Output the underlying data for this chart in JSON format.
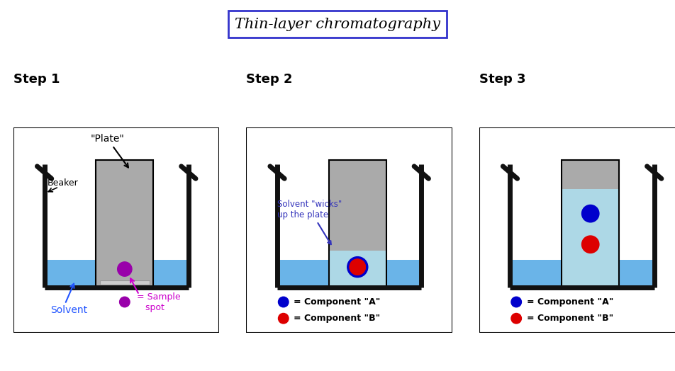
{
  "title": "Thin-layer chromatography",
  "title_box_color": "#3333cc",
  "title_fontsize": 15,
  "step_labels": [
    "Step 1",
    "Step 2",
    "Step 3"
  ],
  "step_label_fontsize": 13,
  "bg_color": "#ffffff",
  "beaker_color": "#111111",
  "solvent_color": "#6ab4e8",
  "plate_color": "#aaaaaa",
  "plate_wet_color": "#add8e6",
  "sample_spot_color": "#9900aa",
  "component_a_color": "#0000cc",
  "component_b_color": "#dd0000",
  "ann_color": "#3333bb",
  "solvent_label_color": "#2255ff",
  "sample_label_color": "#cc00cc",
  "lw_beaker": 5,
  "panel_border_lw": 1.5
}
